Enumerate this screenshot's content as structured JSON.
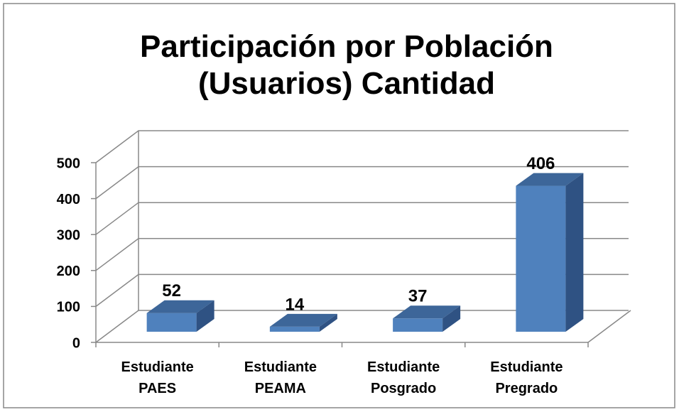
{
  "chart_data": {
    "type": "bar3d",
    "title": "Participación por Población (Usuarios) Cantidad",
    "categories": [
      "Estudiante PAES",
      "Estudiante PEAMA",
      "Estudiante Posgrado",
      "Estudiante Pregrado"
    ],
    "values": [
      52,
      14,
      37,
      406
    ],
    "color": "#4f81bd",
    "ylim": [
      0,
      500
    ],
    "yticks": [
      0,
      100,
      200,
      300,
      400,
      500
    ],
    "grid": true
  }
}
